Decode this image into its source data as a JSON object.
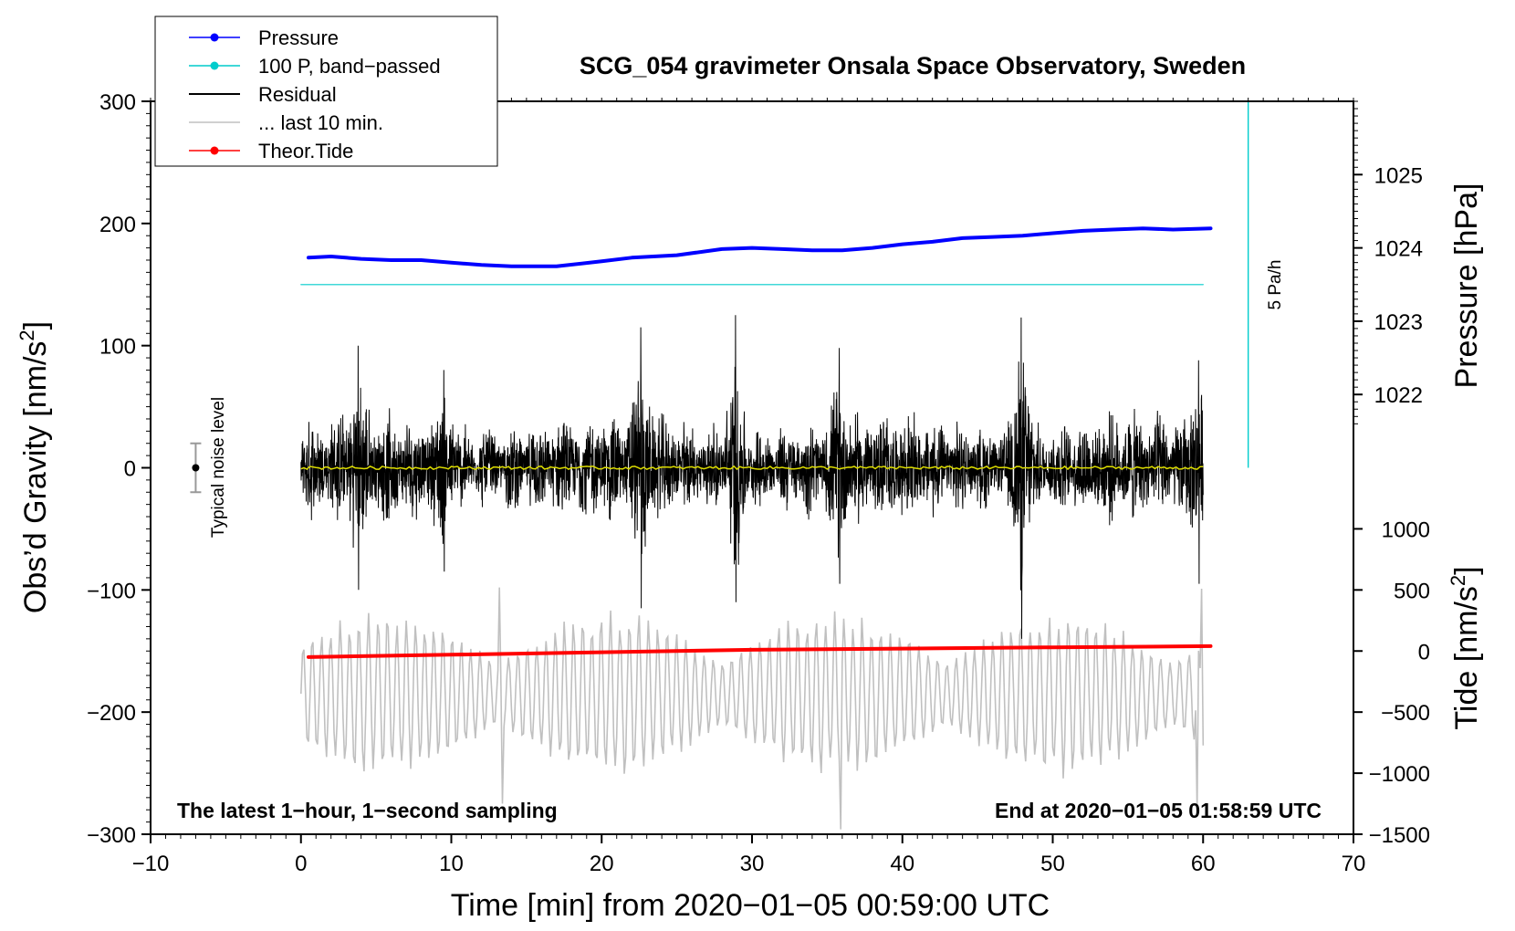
{
  "chart_data": {
    "type": "line",
    "title": "SCG_054 gravimeter Onsala Space Observatory, Sweden",
    "xlabel": "Time [min] from 2020−01−05 00:59:00 UTC",
    "ylabel_left_main": "Obs’d Gravity [nm/s",
    "ylabel_left_sup": "2",
    "ylabel_right_pressure": "Pressure [hPa]",
    "ylabel_right_tide_main": "Tide [nm/s",
    "ylabel_right_tide_sup": "2",
    "xlim": [
      -10,
      70
    ],
    "ylim": [
      -300,
      300
    ],
    "x_ticks": [
      {
        "value": -10,
        "label": "−10"
      },
      {
        "value": 0,
        "label": "0"
      },
      {
        "value": 10,
        "label": "10"
      },
      {
        "value": 20,
        "label": "20"
      },
      {
        "value": 30,
        "label": "30"
      },
      {
        "value": 40,
        "label": "40"
      },
      {
        "value": 50,
        "label": "50"
      },
      {
        "value": 60,
        "label": "60"
      },
      {
        "value": 70,
        "label": "70"
      }
    ],
    "y_ticks": [
      {
        "value": 300,
        "label": "300"
      },
      {
        "value": 200,
        "label": "200"
      },
      {
        "value": 100,
        "label": "100"
      },
      {
        "value": 0,
        "label": "0"
      },
      {
        "value": -100,
        "label": "−100"
      },
      {
        "value": -200,
        "label": "−200"
      },
      {
        "value": -300,
        "label": "−300"
      }
    ],
    "pressure_ticks": [
      {
        "value": 1025,
        "label": "1025"
      },
      {
        "value": 1024,
        "label": "1024"
      },
      {
        "value": 1023,
        "label": "1023"
      },
      {
        "value": 1022,
        "label": "1022"
      }
    ],
    "pressure_axis_map": {
      "ref_value": 1024,
      "ref_gravity": 180,
      "gravity_per_unit": 60
    },
    "tide_ticks": [
      {
        "value": 1000,
        "label": "1000"
      },
      {
        "value": 500,
        "label": "500"
      },
      {
        "value": 0,
        "label": "0"
      },
      {
        "value": -500,
        "label": "−500"
      },
      {
        "value": -1000,
        "label": "−1000"
      },
      {
        "value": -1500,
        "label": "−1500"
      }
    ],
    "tide_axis_map": {
      "ref_value": 0,
      "ref_gravity": -150,
      "gravity_per_unit": 0.1
    },
    "legend": [
      {
        "label": "Pressure",
        "color": "#0000ff",
        "marker": true
      },
      {
        "label": "100 P, band−passed",
        "color": "#00cccc",
        "marker": true
      },
      {
        "label": "Residual",
        "color": "#000000",
        "marker": false
      },
      {
        "label": "... last 10 min.",
        "color": "#c0c0c0",
        "marker": false
      },
      {
        "label": "Theor.Tide",
        "color": "#ff0000",
        "marker": true
      }
    ],
    "series": [
      {
        "name": "Pressure",
        "color": "#0000ff",
        "x": [
          0.5,
          2,
          4,
          6,
          8,
          10,
          12,
          14,
          17,
          20,
          22,
          25,
          28,
          30,
          32,
          34,
          36,
          38,
          40,
          42,
          44,
          46,
          48,
          50,
          52,
          54,
          56,
          58,
          60.5
        ],
        "y": [
          172,
          173,
          171,
          170,
          170,
          168,
          166,
          165,
          165,
          169,
          172,
          174,
          179,
          180,
          179,
          178,
          178,
          180,
          183,
          185,
          188,
          189,
          190,
          192,
          194,
          195,
          196,
          195,
          196
        ]
      },
      {
        "name": "100 P, band-passed",
        "color": "#00cccc",
        "x": [
          0,
          60
        ],
        "y": [
          150,
          150
        ]
      },
      {
        "name": "Theor.Tide",
        "color": "#ff0000",
        "x": [
          0.5,
          10,
          20,
          30,
          40,
          50,
          60.5
        ],
        "y": [
          -155,
          -153,
          -151,
          -149,
          -148,
          -147,
          -146
        ]
      }
    ],
    "residual": {
      "name": "Residual",
      "color": "#000000",
      "x_range": [
        0,
        60
      ],
      "typical_amplitude": 45,
      "peaks": [
        {
          "x": 3.8,
          "max": 100,
          "min": -100
        },
        {
          "x": 9.5,
          "max": 80,
          "min": -85
        },
        {
          "x": 22.6,
          "max": 115,
          "min": -115
        },
        {
          "x": 28.9,
          "max": 125,
          "min": -110
        },
        {
          "x": 35.8,
          "max": 98,
          "min": -95
        },
        {
          "x": 47.9,
          "max": 123,
          "min": -140
        },
        {
          "x": 59.7,
          "max": 88,
          "min": -95
        }
      ],
      "mean_line_color": "#dddd00"
    },
    "last_10_min": {
      "name": "... last 10 min.",
      "color": "#c0c0c0",
      "center": -185,
      "amplitude": 70,
      "extremes": [
        {
          "x": 13.4,
          "y": -275
        },
        {
          "x": 35.9,
          "y": -296
        },
        {
          "x": 59.6,
          "y": -280
        },
        {
          "x": 59.9,
          "y": -99
        },
        {
          "x": 13.2,
          "y": -98
        }
      ]
    },
    "noise_bar": {
      "label": "Typical noise level",
      "x": -7,
      "center": 0,
      "half_range": 20
    },
    "pressure_rate": {
      "label": "5 Pa/h",
      "x": 63,
      "y_from": 0,
      "y_to": 300,
      "color": "#00cccc"
    },
    "annotations": {
      "bottom_left": "The latest 1−hour, 1−second sampling",
      "bottom_right": "End at 2020−01−05 01:58:59 UTC"
    }
  }
}
